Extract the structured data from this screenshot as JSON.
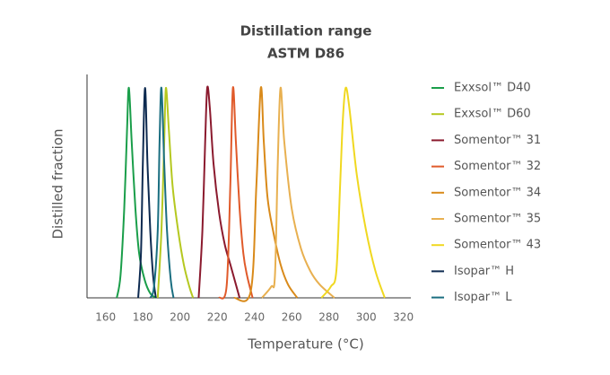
{
  "chart_data": {
    "type": "line",
    "title": "Distillation range",
    "subtitle": "ASTM D86",
    "x_label": "Temperature (°C)",
    "y_label": "Distilled fraction",
    "xlim": [
      150,
      325
    ],
    "ylim": [
      0,
      1
    ],
    "xticks": [
      160,
      180,
      200,
      220,
      240,
      260,
      280,
      300,
      320
    ],
    "series": [
      {
        "name": "Exxsol™ D40",
        "color": "#1a9e4a",
        "x": [
          166,
          168,
          170,
          171.5,
          172.5,
          174,
          176,
          178,
          181,
          184,
          187
        ],
        "values": [
          0,
          0.1,
          0.4,
          0.75,
          0.94,
          0.7,
          0.4,
          0.2,
          0.08,
          0.02,
          0
        ]
      },
      {
        "name": "Exxsol™ D60",
        "color": "#b5c820",
        "x": [
          188,
          190,
          191.5,
          192.4,
          194,
          196,
          199,
          202,
          205,
          207
        ],
        "values": [
          0,
          0.3,
          0.7,
          0.94,
          0.75,
          0.5,
          0.3,
          0.15,
          0.05,
          0
        ]
      },
      {
        "name": "Somentor™ 31",
        "color": "#8b1a2e",
        "x": [
          210,
          212,
          213.5,
          214.6,
          216,
          218,
          221,
          224,
          227,
          230,
          232
        ],
        "values": [
          0,
          0.3,
          0.7,
          0.94,
          0.85,
          0.6,
          0.38,
          0.24,
          0.15,
          0.06,
          0
        ]
      },
      {
        "name": "Somentor™ 32",
        "color": "#e05a2a",
        "x": [
          221,
          225,
          227,
          228.4,
          230,
          232,
          234,
          236,
          239
        ],
        "values": [
          0,
          0.05,
          0.5,
          0.94,
          0.7,
          0.4,
          0.2,
          0.1,
          0
        ]
      },
      {
        "name": "Somentor™ 34",
        "color": "#d98a1a",
        "x": [
          229,
          238,
          241,
          243.4,
          245,
          247,
          250,
          254,
          258,
          263
        ],
        "values": [
          0,
          0.03,
          0.5,
          0.94,
          0.7,
          0.45,
          0.3,
          0.15,
          0.06,
          0
        ]
      },
      {
        "name": "Somentor™ 35",
        "color": "#e8b050",
        "x": [
          244,
          249,
          251,
          252.5,
          254,
          256,
          260,
          265,
          270,
          275,
          283
        ],
        "values": [
          0,
          0.05,
          0.1,
          0.6,
          0.94,
          0.7,
          0.4,
          0.22,
          0.12,
          0.06,
          0
        ]
      },
      {
        "name": "Somentor™ 43",
        "color": "#f0d820",
        "x": [
          276,
          281,
          284,
          286,
          287.5,
          289,
          291,
          295,
          300,
          305,
          310
        ],
        "values": [
          0,
          0.05,
          0.12,
          0.5,
          0.8,
          0.94,
          0.85,
          0.55,
          0.3,
          0.12,
          0
        ]
      },
      {
        "name": "Isopar™ H",
        "color": "#0d2a50",
        "x": [
          177.5,
          179,
          180,
          181.2,
          182.5,
          184,
          185.5,
          187
        ],
        "values": [
          0,
          0.2,
          0.6,
          0.94,
          0.6,
          0.3,
          0.1,
          0
        ]
      },
      {
        "name": "Isopar™ L",
        "color": "#1a6e80",
        "x": [
          184,
          186,
          188,
          189,
          190,
          191.5,
          193,
          195,
          196.5
        ],
        "values": [
          0,
          0.05,
          0.3,
          0.7,
          0.94,
          0.6,
          0.3,
          0.08,
          0
        ]
      }
    ]
  }
}
